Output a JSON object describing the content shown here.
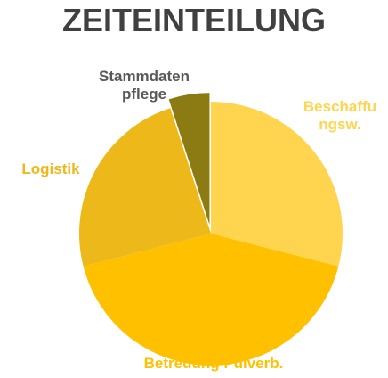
{
  "chart_data": {
    "type": "pie",
    "title": "ZEITEINTEILUNG",
    "categories": [
      "Beschaffungsw.",
      "Betreuung Pulverb.",
      "Logistik",
      "Stammdatenpflege"
    ],
    "values": [
      29,
      42,
      24,
      5
    ],
    "colors": [
      "#FFD54F",
      "#FFC000",
      "#EDB81A",
      "#8C7B12"
    ]
  }
}
